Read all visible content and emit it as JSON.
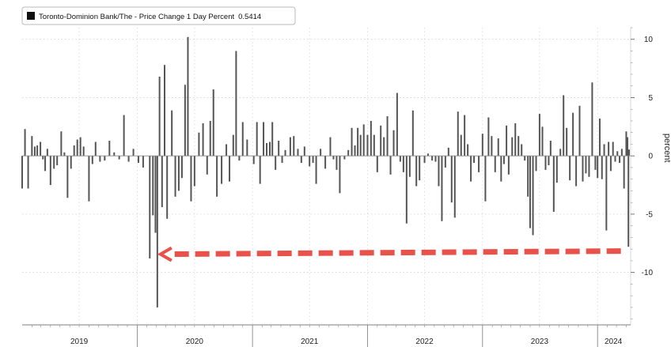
{
  "chart_data": {
    "type": "bar",
    "legend": {
      "label": "Toronto-Dominion Bank/The - Price Change 1 Day Percent",
      "value": "0.5414",
      "placement": "top-left"
    },
    "ylabel": "percent",
    "ylim": [
      -14.5,
      11
    ],
    "yticks": [
      10,
      5,
      0,
      -5,
      -10
    ],
    "ytick_labels": [
      "10",
      "5",
      "0",
      "-5",
      "-10"
    ],
    "grid": true,
    "x_axis": {
      "start": "2019-01-01",
      "end": "2024-04-15"
    },
    "year_labels": [
      {
        "label": "2019",
        "date": "2019-07-01"
      },
      {
        "label": "2020",
        "date": "2020-07-01"
      },
      {
        "label": "2021",
        "date": "2021-07-01"
      },
      {
        "label": "2022",
        "date": "2022-07-01"
      },
      {
        "label": "2023",
        "date": "2023-07-01"
      },
      {
        "label": "2024",
        "date": "2024-02-20"
      }
    ],
    "year_boundaries": [
      "2020-01-01",
      "2021-01-01",
      "2022-01-01",
      "2023-01-01",
      "2024-01-01"
    ],
    "annotation": {
      "type": "arrow",
      "color": "#e8524a",
      "from_date": "2024-03-15",
      "to_date": "2020-03-15",
      "y": -8.3
    },
    "series": [
      {
        "color": "#555555",
        "points": [
          {
            "date": "2019-01-01",
            "value": -2.8
          },
          {
            "date": "2019-01-10",
            "value": 2.3
          },
          {
            "date": "2019-01-20",
            "value": -2.8
          },
          {
            "date": "2019-02-01",
            "value": 1.7
          },
          {
            "date": "2019-02-10",
            "value": 0.8
          },
          {
            "date": "2019-02-18",
            "value": 0.9
          },
          {
            "date": "2019-02-28",
            "value": 1.2
          },
          {
            "date": "2019-03-08",
            "value": -0.3
          },
          {
            "date": "2019-03-15",
            "value": -1.3
          },
          {
            "date": "2019-03-22",
            "value": 0.6
          },
          {
            "date": "2019-04-01",
            "value": -2.5
          },
          {
            "date": "2019-04-12",
            "value": -1.1
          },
          {
            "date": "2019-04-22",
            "value": -0.8
          },
          {
            "date": "2019-05-05",
            "value": 2.1
          },
          {
            "date": "2019-05-15",
            "value": 0.3
          },
          {
            "date": "2019-05-25",
            "value": -3.6
          },
          {
            "date": "2019-06-05",
            "value": -1.1
          },
          {
            "date": "2019-06-15",
            "value": 0.9
          },
          {
            "date": "2019-06-25",
            "value": 1.4
          },
          {
            "date": "2019-07-05",
            "value": 1.6
          },
          {
            "date": "2019-07-15",
            "value": 0.8
          },
          {
            "date": "2019-08-01",
            "value": -3.9
          },
          {
            "date": "2019-08-12",
            "value": -0.7
          },
          {
            "date": "2019-08-22",
            "value": 1.2
          },
          {
            "date": "2019-09-05",
            "value": -0.5
          },
          {
            "date": "2019-09-20",
            "value": -0.4
          },
          {
            "date": "2019-10-05",
            "value": 1.3
          },
          {
            "date": "2019-10-20",
            "value": 0.3
          },
          {
            "date": "2019-11-05",
            "value": -0.3
          },
          {
            "date": "2019-11-20",
            "value": 3.5
          },
          {
            "date": "2019-12-05",
            "value": -0.5
          },
          {
            "date": "2019-12-20",
            "value": 0.6
          },
          {
            "date": "2020-01-05",
            "value": -0.6
          },
          {
            "date": "2020-01-20",
            "value": -1.0
          },
          {
            "date": "2020-02-10",
            "value": -8.8
          },
          {
            "date": "2020-02-20",
            "value": -5.1
          },
          {
            "date": "2020-02-28",
            "value": -6.6
          },
          {
            "date": "2020-03-05",
            "value": -13.0
          },
          {
            "date": "2020-03-12",
            "value": 6.8
          },
          {
            "date": "2020-03-20",
            "value": -4.4
          },
          {
            "date": "2020-03-28",
            "value": 7.8
          },
          {
            "date": "2020-04-05",
            "value": -5.4
          },
          {
            "date": "2020-04-20",
            "value": 3.9
          },
          {
            "date": "2020-05-01",
            "value": -3.5
          },
          {
            "date": "2020-05-12",
            "value": -3.0
          },
          {
            "date": "2020-05-22",
            "value": -1.9
          },
          {
            "date": "2020-06-01",
            "value": 6.1
          },
          {
            "date": "2020-06-10",
            "value": 10.2
          },
          {
            "date": "2020-06-20",
            "value": -3.9
          },
          {
            "date": "2020-07-01",
            "value": -2.6
          },
          {
            "date": "2020-07-15",
            "value": 2.0
          },
          {
            "date": "2020-07-28",
            "value": 2.8
          },
          {
            "date": "2020-08-10",
            "value": -1.6
          },
          {
            "date": "2020-08-20",
            "value": 3.0
          },
          {
            "date": "2020-08-30",
            "value": 5.7
          },
          {
            "date": "2020-09-10",
            "value": -3.5
          },
          {
            "date": "2020-09-25",
            "value": -2.4
          },
          {
            "date": "2020-10-10",
            "value": 1.0
          },
          {
            "date": "2020-10-20",
            "value": -2.2
          },
          {
            "date": "2020-11-01",
            "value": 1.8
          },
          {
            "date": "2020-11-10",
            "value": 9.0
          },
          {
            "date": "2020-11-20",
            "value": -0.4
          },
          {
            "date": "2020-12-01",
            "value": 2.9
          },
          {
            "date": "2020-12-15",
            "value": 1.4
          },
          {
            "date": "2021-01-05",
            "value": -0.7
          },
          {
            "date": "2021-01-15",
            "value": 2.9
          },
          {
            "date": "2021-01-25",
            "value": -2.4
          },
          {
            "date": "2021-02-05",
            "value": 2.9
          },
          {
            "date": "2021-02-15",
            "value": 1.1
          },
          {
            "date": "2021-02-25",
            "value": 1.2
          },
          {
            "date": "2021-03-05",
            "value": 2.9
          },
          {
            "date": "2021-03-15",
            "value": -1.2
          },
          {
            "date": "2021-03-25",
            "value": 1.3
          },
          {
            "date": "2021-04-05",
            "value": -0.6
          },
          {
            "date": "2021-04-15",
            "value": 0.5
          },
          {
            "date": "2021-05-01",
            "value": 1.6
          },
          {
            "date": "2021-05-12",
            "value": 1.7
          },
          {
            "date": "2021-05-25",
            "value": 0.6
          },
          {
            "date": "2021-06-05",
            "value": -0.6
          },
          {
            "date": "2021-06-15",
            "value": 0.8
          },
          {
            "date": "2021-07-01",
            "value": -0.9
          },
          {
            "date": "2021-07-12",
            "value": -0.6
          },
          {
            "date": "2021-07-22",
            "value": -2.4
          },
          {
            "date": "2021-08-05",
            "value": 0.6
          },
          {
            "date": "2021-08-20",
            "value": -1.1
          },
          {
            "date": "2021-09-05",
            "value": 1.6
          },
          {
            "date": "2021-09-15",
            "value": -0.3
          },
          {
            "date": "2021-09-25",
            "value": -1.2
          },
          {
            "date": "2021-10-05",
            "value": -3.2
          },
          {
            "date": "2021-10-20",
            "value": -0.3
          },
          {
            "date": "2021-11-01",
            "value": 0.5
          },
          {
            "date": "2021-11-12",
            "value": 2.4
          },
          {
            "date": "2021-11-22",
            "value": 0.9
          },
          {
            "date": "2021-12-01",
            "value": 2.4
          },
          {
            "date": "2021-12-10",
            "value": 1.8
          },
          {
            "date": "2021-12-20",
            "value": 2.7
          },
          {
            "date": "2022-01-01",
            "value": 1.8
          },
          {
            "date": "2022-01-12",
            "value": 3.0
          },
          {
            "date": "2022-01-22",
            "value": 1.8
          },
          {
            "date": "2022-02-01",
            "value": -1.4
          },
          {
            "date": "2022-02-12",
            "value": 2.6
          },
          {
            "date": "2022-02-22",
            "value": 1.6
          },
          {
            "date": "2022-03-05",
            "value": 3.4
          },
          {
            "date": "2022-03-15",
            "value": -1.6
          },
          {
            "date": "2022-03-25",
            "value": 2.2
          },
          {
            "date": "2022-04-05",
            "value": 5.4
          },
          {
            "date": "2022-04-15",
            "value": -0.5
          },
          {
            "date": "2022-04-25",
            "value": -1.4
          },
          {
            "date": "2022-05-05",
            "value": -5.8
          },
          {
            "date": "2022-05-15",
            "value": -1.8
          },
          {
            "date": "2022-05-25",
            "value": 3.9
          },
          {
            "date": "2022-06-05",
            "value": -2.6
          },
          {
            "date": "2022-06-15",
            "value": -2.1
          },
          {
            "date": "2022-07-01",
            "value": -0.6
          },
          {
            "date": "2022-07-12",
            "value": 0.2
          },
          {
            "date": "2022-07-25",
            "value": -0.4
          },
          {
            "date": "2022-08-05",
            "value": -0.5
          },
          {
            "date": "2022-08-15",
            "value": -2.6
          },
          {
            "date": "2022-08-25",
            "value": -5.6
          },
          {
            "date": "2022-09-05",
            "value": -1.0
          },
          {
            "date": "2022-09-15",
            "value": 0.7
          },
          {
            "date": "2022-09-25",
            "value": -4.0
          },
          {
            "date": "2022-10-05",
            "value": -5.3
          },
          {
            "date": "2022-10-15",
            "value": 3.8
          },
          {
            "date": "2022-10-25",
            "value": 1.8
          },
          {
            "date": "2022-11-05",
            "value": 3.5
          },
          {
            "date": "2022-11-15",
            "value": 1.0
          },
          {
            "date": "2022-11-25",
            "value": -2.2
          },
          {
            "date": "2022-12-05",
            "value": -0.6
          },
          {
            "date": "2022-12-20",
            "value": -1.4
          },
          {
            "date": "2023-01-01",
            "value": 1.9
          },
          {
            "date": "2023-01-10",
            "value": -3.9
          },
          {
            "date": "2023-01-20",
            "value": 3.3
          },
          {
            "date": "2023-01-30",
            "value": 1.7
          },
          {
            "date": "2023-02-10",
            "value": -1.4
          },
          {
            "date": "2023-02-20",
            "value": 1.5
          },
          {
            "date": "2023-03-01",
            "value": -2.2
          },
          {
            "date": "2023-03-10",
            "value": -0.7
          },
          {
            "date": "2023-03-18",
            "value": 2.6
          },
          {
            "date": "2023-03-25",
            "value": -1.6
          },
          {
            "date": "2023-04-05",
            "value": 1.6
          },
          {
            "date": "2023-04-15",
            "value": 2.8
          },
          {
            "date": "2023-04-25",
            "value": 1.7
          },
          {
            "date": "2023-05-05",
            "value": 1.0
          },
          {
            "date": "2023-05-15",
            "value": -0.4
          },
          {
            "date": "2023-05-25",
            "value": -3.5
          },
          {
            "date": "2023-06-01",
            "value": -6.2
          },
          {
            "date": "2023-06-10",
            "value": -6.8
          },
          {
            "date": "2023-06-20",
            "value": -1.3
          },
          {
            "date": "2023-07-01",
            "value": 3.6
          },
          {
            "date": "2023-07-10",
            "value": 2.5
          },
          {
            "date": "2023-07-20",
            "value": -1.2
          },
          {
            "date": "2023-07-30",
            "value": -0.8
          },
          {
            "date": "2023-08-05",
            "value": 1.3
          },
          {
            "date": "2023-08-15",
            "value": -4.8
          },
          {
            "date": "2023-08-25",
            "value": -2.3
          },
          {
            "date": "2023-09-05",
            "value": 0.6
          },
          {
            "date": "2023-09-15",
            "value": 5.2
          },
          {
            "date": "2023-09-25",
            "value": 2.4
          },
          {
            "date": "2023-10-05",
            "value": -2.1
          },
          {
            "date": "2023-10-15",
            "value": 3.7
          },
          {
            "date": "2023-10-25",
            "value": -2.6
          },
          {
            "date": "2023-11-05",
            "value": 4.3
          },
          {
            "date": "2023-11-15",
            "value": -2.2
          },
          {
            "date": "2023-11-25",
            "value": -1.5
          },
          {
            "date": "2023-12-05",
            "value": -1.8
          },
          {
            "date": "2023-12-15",
            "value": 6.3
          },
          {
            "date": "2023-12-25",
            "value": -1.2
          },
          {
            "date": "2024-01-01",
            "value": -1.9
          },
          {
            "date": "2024-01-08",
            "value": 3.2
          },
          {
            "date": "2024-01-15",
            "value": -2.0
          },
          {
            "date": "2024-01-22",
            "value": 1.0
          },
          {
            "date": "2024-01-29",
            "value": -6.4
          },
          {
            "date": "2024-02-05",
            "value": 1.2
          },
          {
            "date": "2024-02-12",
            "value": -1.3
          },
          {
            "date": "2024-02-19",
            "value": 1.2
          },
          {
            "date": "2024-02-26",
            "value": -0.5
          },
          {
            "date": "2024-03-04",
            "value": 0.4
          },
          {
            "date": "2024-03-11",
            "value": -0.6
          },
          {
            "date": "2024-03-18",
            "value": 0.6
          },
          {
            "date": "2024-03-25",
            "value": -2.8
          },
          {
            "date": "2024-04-01",
            "value": 2.1
          },
          {
            "date": "2024-04-05",
            "value": 1.6
          },
          {
            "date": "2024-04-08",
            "value": -7.8
          },
          {
            "date": "2024-04-10",
            "value": 0.5414
          }
        ]
      }
    ]
  }
}
